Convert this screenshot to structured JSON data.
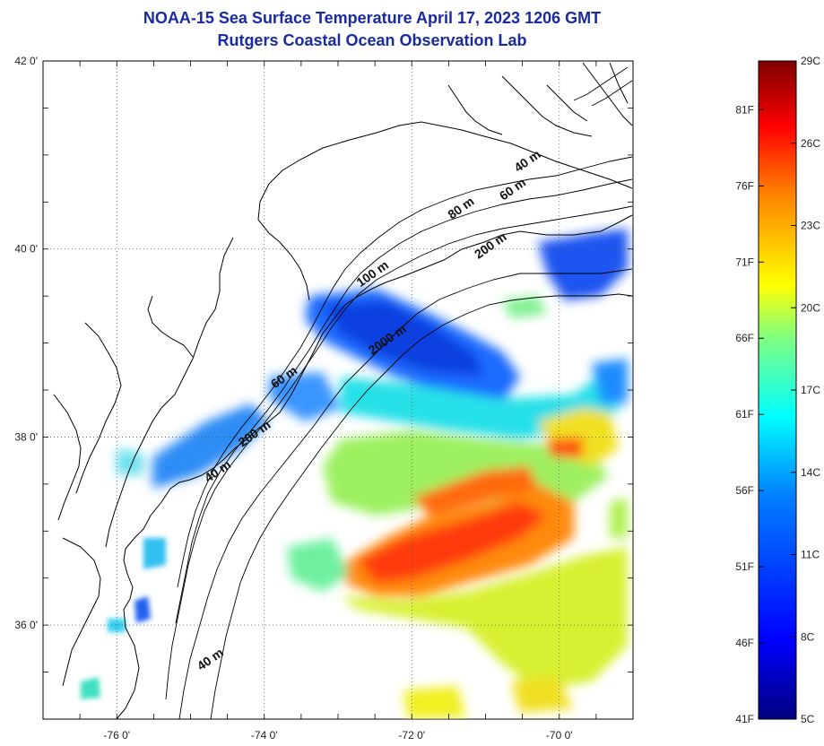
{
  "title": {
    "line1": "NOAA-15 Sea Surface Temperature April 17, 2023 1206 GMT",
    "line2": "Rutgers Coastal Ocean Observation Lab"
  },
  "map": {
    "lon_range": [
      -77,
      -69
    ],
    "lat_range": [
      35,
      42
    ],
    "lon_ticks": [
      {
        "value": -76,
        "label": "-76 0'"
      },
      {
        "value": -74,
        "label": "-74 0'"
      },
      {
        "value": -72,
        "label": "-72 0'"
      },
      {
        "value": -70,
        "label": "-70 0'"
      }
    ],
    "lat_ticks": [
      {
        "value": 42,
        "label": "42 0'"
      },
      {
        "value": 40,
        "label": "40 0'"
      },
      {
        "value": 38,
        "label": "38 0'"
      },
      {
        "value": 36,
        "label": "36 0'"
      }
    ],
    "grid": "dotted",
    "isobath_labels": [
      {
        "text": "40 m",
        "lon": -70.4,
        "lat": 40.9
      },
      {
        "text": "60 m",
        "lon": -70.6,
        "lat": 40.6
      },
      {
        "text": "80 m",
        "lon": -71.3,
        "lat": 40.4
      },
      {
        "text": "200 m",
        "lon": -70.9,
        "lat": 40.0
      },
      {
        "text": "100 m",
        "lon": -72.5,
        "lat": 39.7
      },
      {
        "text": "2000 m",
        "lon": -72.3,
        "lat": 39.0
      },
      {
        "text": "60 m",
        "lon": -73.7,
        "lat": 38.6
      },
      {
        "text": "200 m",
        "lon": -74.1,
        "lat": 38.0
      },
      {
        "text": "40 m",
        "lon": -74.6,
        "lat": 37.6
      },
      {
        "text": "40 m",
        "lon": -74.7,
        "lat": 35.6
      }
    ]
  },
  "colorbar": {
    "celsius_range": [
      5,
      29
    ],
    "fahrenheit_labels": [
      "81F",
      "76F",
      "71F",
      "66F",
      "61F",
      "56F",
      "51F",
      "46F",
      "41F"
    ],
    "celsius_labels": [
      "29C",
      "26C",
      "23C",
      "20C",
      "17C",
      "14C",
      "11C",
      "8C",
      "5C"
    ],
    "colors": [
      "#00007f",
      "#0000ff",
      "#0080ff",
      "#00ffff",
      "#80ff80",
      "#ffff00",
      "#ff8000",
      "#ff0000",
      "#7f0000"
    ]
  }
}
